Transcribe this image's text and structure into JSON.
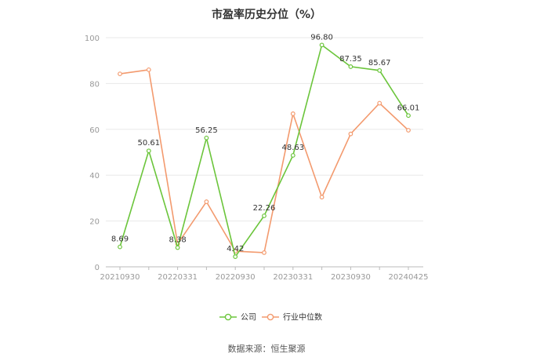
{
  "title": "市盈率历史分位（%）",
  "source": "数据来源：恒生聚源",
  "colors": {
    "company": "#6bc53b",
    "industry": "#f39a6e",
    "grid": "#e8e8e8",
    "axis": "#999999"
  },
  "chart_data": {
    "type": "line",
    "title": "市盈率历史分位（%）",
    "xlabel": "",
    "ylabel": "",
    "ylim": [
      0,
      100
    ],
    "yticks": [
      0,
      20,
      40,
      60,
      80,
      100
    ],
    "x": [
      "20210930",
      "20211231",
      "20220331",
      "20220630",
      "20220930",
      "20221231",
      "20230331",
      "20230630",
      "20230930",
      "20231231",
      "20240425"
    ],
    "xtick_labels": [
      "20210930",
      "20220331",
      "20220930",
      "20230331",
      "20230930",
      "20240425"
    ],
    "grid": true,
    "legend": "bottom-center",
    "series": [
      {
        "name": "公司",
        "values": [
          8.69,
          50.61,
          8.38,
          56.25,
          4.42,
          22.26,
          48.63,
          96.8,
          87.35,
          85.67,
          66.01
        ],
        "labels": [
          "8.69",
          "50.61",
          "8.38",
          "56.25",
          "4.42",
          "22.26",
          "48.63",
          "96.80",
          "87.35",
          "85.67",
          "66.01"
        ]
      },
      {
        "name": "行业中位数",
        "values": [
          84.2,
          86.0,
          10.0,
          28.4,
          6.8,
          6.2,
          66.8,
          30.4,
          58.0,
          71.4,
          59.6
        ]
      }
    ]
  }
}
